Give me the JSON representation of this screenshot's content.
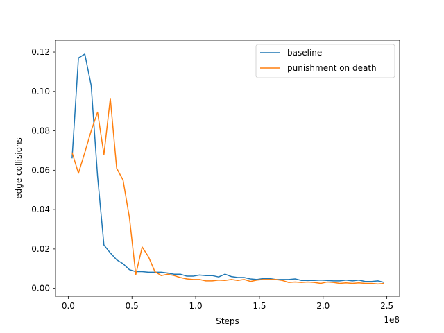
{
  "chart_data": {
    "type": "line",
    "title": "",
    "xlabel": "Steps",
    "ylabel": "edge collisions",
    "x_offset_label": "1e8",
    "xlim": [
      -0.1,
      2.6
    ],
    "ylim": [
      -0.004,
      0.126
    ],
    "x_ticks": [
      0.0,
      0.5,
      1.0,
      1.5,
      2.0,
      2.5
    ],
    "x_tick_labels": [
      "0.0",
      "0.5",
      "1.0",
      "1.5",
      "2.0",
      "2.5"
    ],
    "y_ticks": [
      0.0,
      0.02,
      0.04,
      0.06,
      0.08,
      0.1,
      0.12
    ],
    "y_tick_labels": [
      "0.00",
      "0.02",
      "0.04",
      "0.06",
      "0.08",
      "0.10",
      "0.12"
    ],
    "grid": false,
    "legend": "top-right",
    "series": [
      {
        "name": "baseline",
        "color": "#1f77b4",
        "points": [
          [
            0.03,
            0.066
          ],
          [
            0.08,
            0.117
          ],
          [
            0.13,
            0.119
          ],
          [
            0.18,
            0.103
          ],
          [
            0.23,
            0.057
          ],
          [
            0.28,
            0.022
          ],
          [
            0.33,
            0.018
          ],
          [
            0.38,
            0.0145
          ],
          [
            0.43,
            0.0125
          ],
          [
            0.48,
            0.0095
          ],
          [
            0.53,
            0.0085
          ],
          [
            0.58,
            0.0085
          ],
          [
            0.63,
            0.0082
          ],
          [
            0.68,
            0.0082
          ],
          [
            0.73,
            0.0082
          ],
          [
            0.78,
            0.0078
          ],
          [
            0.83,
            0.0072
          ],
          [
            0.88,
            0.0072
          ],
          [
            0.93,
            0.0062
          ],
          [
            0.98,
            0.0062
          ],
          [
            1.03,
            0.0068
          ],
          [
            1.08,
            0.0065
          ],
          [
            1.13,
            0.0065
          ],
          [
            1.18,
            0.0058
          ],
          [
            1.23,
            0.0072
          ],
          [
            1.28,
            0.006
          ],
          [
            1.33,
            0.0055
          ],
          [
            1.38,
            0.0055
          ],
          [
            1.43,
            0.0048
          ],
          [
            1.48,
            0.0045
          ],
          [
            1.53,
            0.005
          ],
          [
            1.58,
            0.005
          ],
          [
            1.63,
            0.0045
          ],
          [
            1.68,
            0.0045
          ],
          [
            1.73,
            0.0045
          ],
          [
            1.78,
            0.0048
          ],
          [
            1.83,
            0.004
          ],
          [
            1.88,
            0.004
          ],
          [
            1.93,
            0.004
          ],
          [
            1.98,
            0.0042
          ],
          [
            2.03,
            0.004
          ],
          [
            2.08,
            0.0038
          ],
          [
            2.13,
            0.0038
          ],
          [
            2.18,
            0.0042
          ],
          [
            2.23,
            0.0038
          ],
          [
            2.28,
            0.0042
          ],
          [
            2.33,
            0.0035
          ],
          [
            2.38,
            0.0035
          ],
          [
            2.43,
            0.0038
          ],
          [
            2.48,
            0.003
          ]
        ]
      },
      {
        "name": "punishment on death",
        "color": "#ff7f0e",
        "points": [
          [
            0.03,
            0.069
          ],
          [
            0.08,
            0.0585
          ],
          [
            0.13,
            0.069
          ],
          [
            0.18,
            0.08
          ],
          [
            0.23,
            0.0895
          ],
          [
            0.28,
            0.068
          ],
          [
            0.33,
            0.0965
          ],
          [
            0.38,
            0.061
          ],
          [
            0.43,
            0.055
          ],
          [
            0.48,
            0.036
          ],
          [
            0.53,
            0.007
          ],
          [
            0.58,
            0.021
          ],
          [
            0.63,
            0.016
          ],
          [
            0.68,
            0.0085
          ],
          [
            0.73,
            0.0065
          ],
          [
            0.78,
            0.0072
          ],
          [
            0.83,
            0.0065
          ],
          [
            0.88,
            0.0055
          ],
          [
            0.93,
            0.0048
          ],
          [
            0.98,
            0.0045
          ],
          [
            1.03,
            0.0045
          ],
          [
            1.08,
            0.0038
          ],
          [
            1.13,
            0.0038
          ],
          [
            1.18,
            0.0042
          ],
          [
            1.23,
            0.004
          ],
          [
            1.28,
            0.0045
          ],
          [
            1.33,
            0.004
          ],
          [
            1.38,
            0.0045
          ],
          [
            1.43,
            0.0035
          ],
          [
            1.48,
            0.0042
          ],
          [
            1.53,
            0.0045
          ],
          [
            1.58,
            0.0045
          ],
          [
            1.63,
            0.0045
          ],
          [
            1.68,
            0.004
          ],
          [
            1.73,
            0.003
          ],
          [
            1.78,
            0.0032
          ],
          [
            1.83,
            0.003
          ],
          [
            1.88,
            0.0032
          ],
          [
            1.93,
            0.003
          ],
          [
            1.98,
            0.0025
          ],
          [
            2.03,
            0.0032
          ],
          [
            2.08,
            0.003
          ],
          [
            2.13,
            0.0025
          ],
          [
            2.18,
            0.0028
          ],
          [
            2.23,
            0.0025
          ],
          [
            2.28,
            0.0028
          ],
          [
            2.33,
            0.0025
          ],
          [
            2.38,
            0.0025
          ],
          [
            2.43,
            0.0022
          ],
          [
            2.48,
            0.0025
          ]
        ]
      }
    ]
  }
}
